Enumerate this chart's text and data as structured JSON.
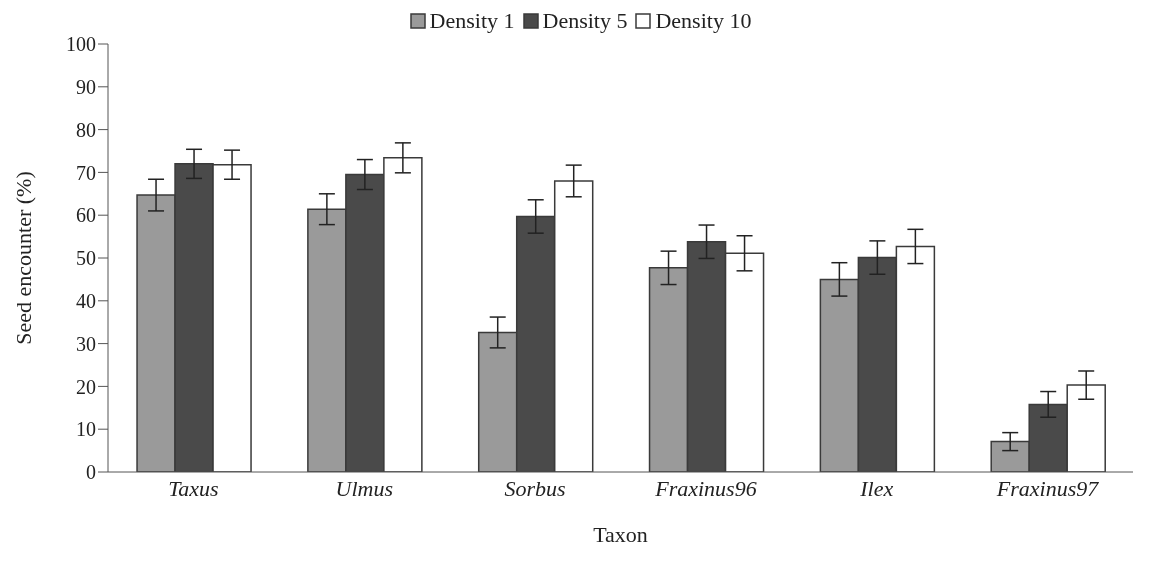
{
  "chart_data": {
    "type": "bar",
    "xlabel": "Taxon",
    "ylabel": "Seed encounter (%)",
    "categories": [
      "Taxus",
      "Ulmus",
      "Sorbus",
      "Fraxinus96",
      "Ilex",
      "Fraxinus97"
    ],
    "series": [
      {
        "name": "Density 1",
        "color": "#9a9a9a",
        "values": [
          64.7,
          61.4,
          32.6,
          47.7,
          45.0,
          7.1
        ],
        "errors": [
          3.7,
          3.6,
          3.6,
          3.9,
          3.9,
          2.1
        ]
      },
      {
        "name": "Density 5",
        "color": "#4a4a4a",
        "values": [
          72.0,
          69.5,
          59.7,
          53.8,
          50.1,
          15.8
        ],
        "errors": [
          3.4,
          3.5,
          3.9,
          3.9,
          3.9,
          3.0
        ]
      },
      {
        "name": "Density 10",
        "color": "#ffffff",
        "values": [
          71.8,
          73.4,
          68.0,
          51.1,
          52.7,
          20.3
        ],
        "errors": [
          3.4,
          3.5,
          3.7,
          4.1,
          4.0,
          3.3
        ]
      }
    ],
    "ylim": [
      0,
      100
    ],
    "yticks": [
      0,
      10,
      20,
      30,
      40,
      50,
      60,
      70,
      80,
      90,
      100
    ],
    "grid": false,
    "legend": "top"
  }
}
